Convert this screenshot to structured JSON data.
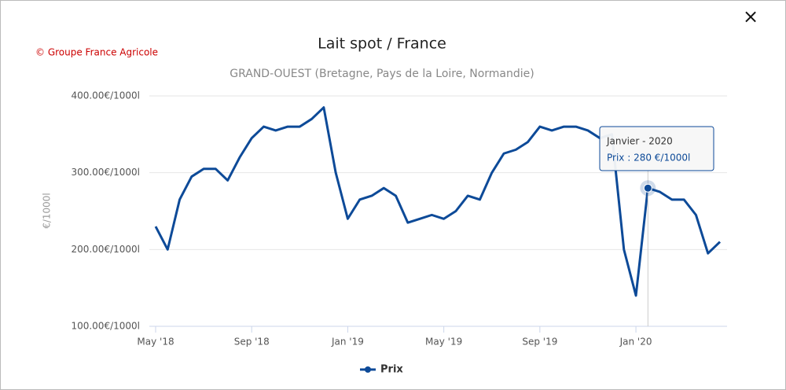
{
  "close": "×",
  "credit": "© Groupe France Agricole",
  "chart_data": {
    "type": "line",
    "title": "Lait spot / France",
    "subtitle": "GRAND-OUEST (Bretagne, Pays de la Loire, Normandie)",
    "y_label": "€/1000l",
    "categories": [
      "May '18",
      null,
      null,
      null,
      null,
      null,
      null,
      null,
      "Sep '18",
      null,
      null,
      null,
      null,
      null,
      null,
      null,
      "Jan '19",
      null,
      null,
      null,
      null,
      null,
      null,
      null,
      "May '19",
      null,
      null,
      null,
      null,
      null,
      null,
      null,
      "Sep '19",
      null,
      null,
      null,
      null,
      null,
      null,
      null,
      "Jan '20",
      null,
      null,
      null,
      null,
      null,
      null,
      null
    ],
    "series": [
      {
        "name": "Prix",
        "color": "#0d4a98",
        "values": [
          230,
          200,
          265,
          295,
          305,
          305,
          290,
          320,
          345,
          360,
          355,
          360,
          360,
          370,
          385,
          300,
          240,
          265,
          270,
          280,
          270,
          235,
          240,
          245,
          240,
          250,
          270,
          265,
          300,
          325,
          330,
          340,
          360,
          355,
          360,
          360,
          355,
          345,
          350,
          200,
          140,
          280,
          275,
          265,
          265,
          245,
          195,
          210
        ]
      }
    ],
    "ylim": [
      100,
      400
    ],
    "yticks": [
      {
        "value": 100,
        "label": "100.00€/1000l"
      },
      {
        "value": 200,
        "label": "200.00€/1000l"
      },
      {
        "value": 300,
        "label": "300.00€/1000l"
      },
      {
        "value": 400,
        "label": "400.00€/1000l"
      }
    ],
    "grid": true,
    "tooltip": [
      "Janvier - 2020",
      "Prix : 280 €/1000l"
    ]
  }
}
